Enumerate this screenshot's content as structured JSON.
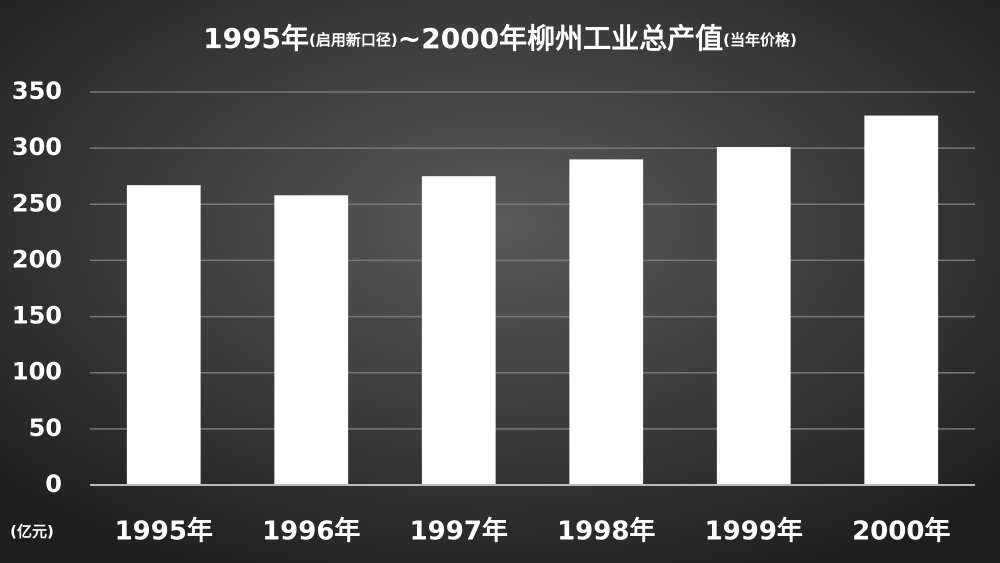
{
  "chart_data": {
    "type": "bar",
    "title": [
      "1995年",
      "(启用新口径)",
      "~2000年柳州工业总产值",
      "(当年价格)"
    ],
    "y_label": "(亿元)",
    "categories": [
      "1995年",
      "1996年",
      "1997年",
      "1998年",
      "1999年",
      "2000年"
    ],
    "values": [
      267,
      258,
      275,
      290,
      301,
      329
    ],
    "color": "#ffffff",
    "ylim": [
      0,
      350
    ],
    "yticks": [
      0,
      50,
      100,
      150,
      200,
      250,
      300,
      350
    ],
    "grid": true
  }
}
